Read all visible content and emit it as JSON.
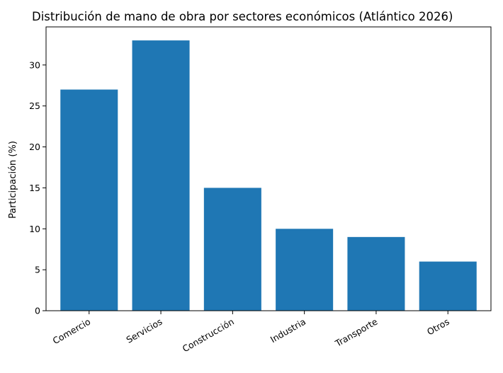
{
  "chart_data": {
    "type": "bar",
    "title": "Distribución de mano de obra por sectores económicos (Atlántico 2026)",
    "xlabel": "",
    "ylabel": "Participación (%)",
    "categories": [
      "Comercio",
      "Servicios",
      "Construcción",
      "Industria",
      "Transporte",
      "Otros"
    ],
    "values": [
      27,
      33,
      15,
      10,
      9,
      6
    ],
    "ylim": [
      0,
      34.65
    ],
    "yticks": [
      0,
      5,
      10,
      15,
      20,
      25,
      30
    ],
    "bar_color": "#1f77b4",
    "grid": false
  }
}
